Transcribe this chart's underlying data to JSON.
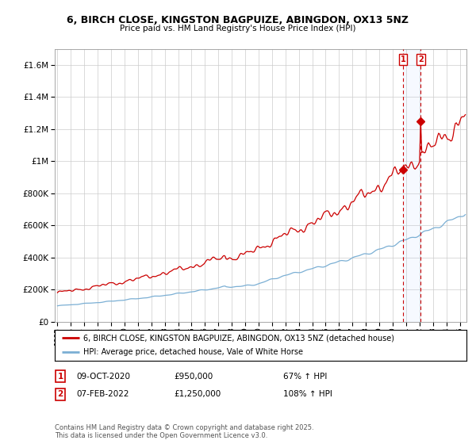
{
  "title": "6, BIRCH CLOSE, KINGSTON BAGPUIZE, ABINGDON, OX13 5NZ",
  "subtitle": "Price paid vs. HM Land Registry's House Price Index (HPI)",
  "line1_label": "6, BIRCH CLOSE, KINGSTON BAGPUIZE, ABINGDON, OX13 5NZ (detached house)",
  "line2_label": "HPI: Average price, detached house, Vale of White Horse",
  "line1_color": "#cc0000",
  "line2_color": "#7bafd4",
  "sale1_date_x": 2020.77,
  "sale1_price": 950000,
  "sale2_date_x": 2022.09,
  "sale2_price": 1250000,
  "sale1_text": "09-OCT-2020",
  "sale1_amount": "£950,000",
  "sale1_hpi": "67% ↑ HPI",
  "sale2_text": "07-FEB-2022",
  "sale2_amount": "£1,250,000",
  "sale2_hpi": "108% ↑ HPI",
  "ylim": [
    0,
    1700000
  ],
  "xlim": [
    1994.8,
    2025.5
  ],
  "footer": "Contains HM Land Registry data © Crown copyright and database right 2025.\nThis data is licensed under the Open Government Licence v3.0.",
  "background_color": "#ffffff",
  "grid_color": "#cccccc"
}
